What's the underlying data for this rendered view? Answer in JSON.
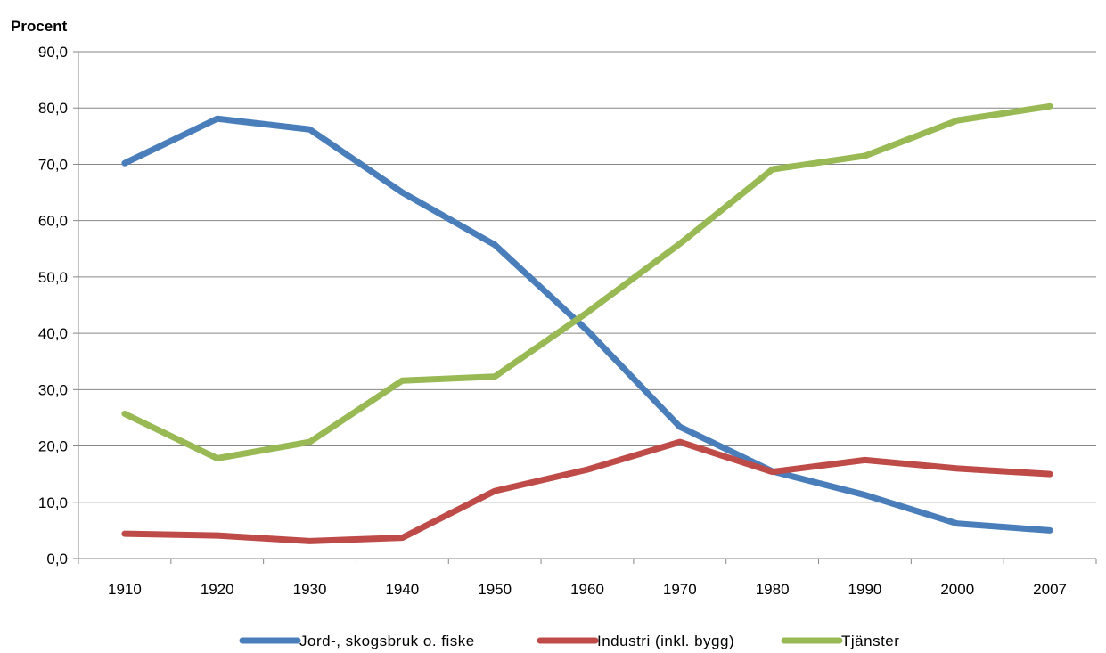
{
  "chart_data": {
    "type": "line",
    "title": "",
    "ylabel": "Procent",
    "xlabel": "",
    "categories": [
      "1910",
      "1920",
      "1930",
      "1940",
      "1950",
      "1960",
      "1970",
      "1980",
      "1990",
      "2000",
      "2007"
    ],
    "ylim": [
      0,
      90
    ],
    "yticks": [
      "0,0",
      "10,0",
      "20,0",
      "30,0",
      "40,0",
      "50,0",
      "60,0",
      "70,0",
      "80,0",
      "90,0"
    ],
    "grid": "horizontal",
    "legend_position": "bottom",
    "series": [
      {
        "name": "Jord-, skogsbruk o. fiske",
        "color": "#4a7ebb",
        "values": [
          70.2,
          78.1,
          76.2,
          65.0,
          55.7,
          40.5,
          23.4,
          15.5,
          11.3,
          6.2,
          5.0
        ]
      },
      {
        "name": "Industri (inkl. bygg)",
        "color": "#be4b48",
        "values": [
          4.4,
          4.1,
          3.1,
          3.7,
          12.0,
          15.8,
          20.7,
          15.4,
          17.5,
          16.0,
          15.0
        ]
      },
      {
        "name": "Tjänster",
        "color": "#98b954",
        "values": [
          25.7,
          17.8,
          20.7,
          31.6,
          32.3,
          43.7,
          55.9,
          69.1,
          71.5,
          77.8,
          80.3
        ]
      }
    ]
  }
}
